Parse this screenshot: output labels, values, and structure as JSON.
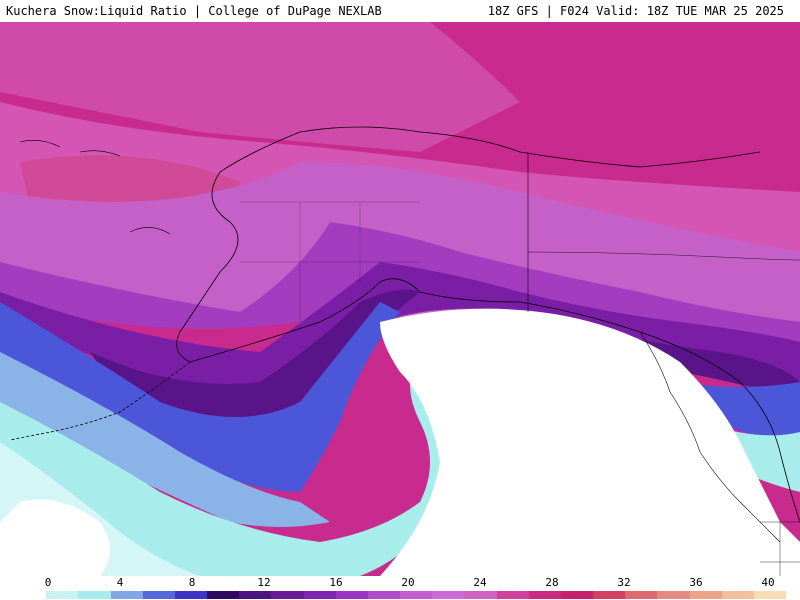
{
  "header": {
    "title": "Kuchera Snow:Liquid Ratio | College of DuPage NEXLAB",
    "run_info": "18Z GFS | F024 Valid: 18Z TUE MAR 25 2025"
  },
  "legend": {
    "tick_labels": [
      "0",
      "4",
      "8",
      "12",
      "16",
      "20",
      "24",
      "28",
      "32",
      "36",
      "40"
    ],
    "colors": [
      "#ffffff",
      "#cbf2f2",
      "#a6ecec",
      "#7fa8e4",
      "#5467dc",
      "#3a34c8",
      "#300a60",
      "#4c1480",
      "#6a1b9a",
      "#8225b4",
      "#9a34c4",
      "#b04ccc",
      "#c45cd0",
      "#cc6ad8",
      "#d062c0",
      "#d0409c",
      "#cc2a80",
      "#c8206c",
      "#d64060",
      "#dc6a70",
      "#e48a80",
      "#eba488",
      "#f2c09c",
      "#f8ddb4"
    ]
  },
  "map": {
    "region": "Alaska / Gulf of Alaska / British Columbia",
    "colors": {
      "north_magenta": "#c82a8e",
      "pink": "#d455b4",
      "orchid": "#c460c8",
      "violet": "#a43cc0",
      "purple": "#7a1ea6",
      "deep_purple": "#5a148a",
      "blue": "#4c56d8",
      "light_blue": "#8ab4e8",
      "cyan": "#a8ecec",
      "pale_cyan": "#d4f6f6",
      "no_data": "#ffffff",
      "outline": "#000000"
    }
  }
}
